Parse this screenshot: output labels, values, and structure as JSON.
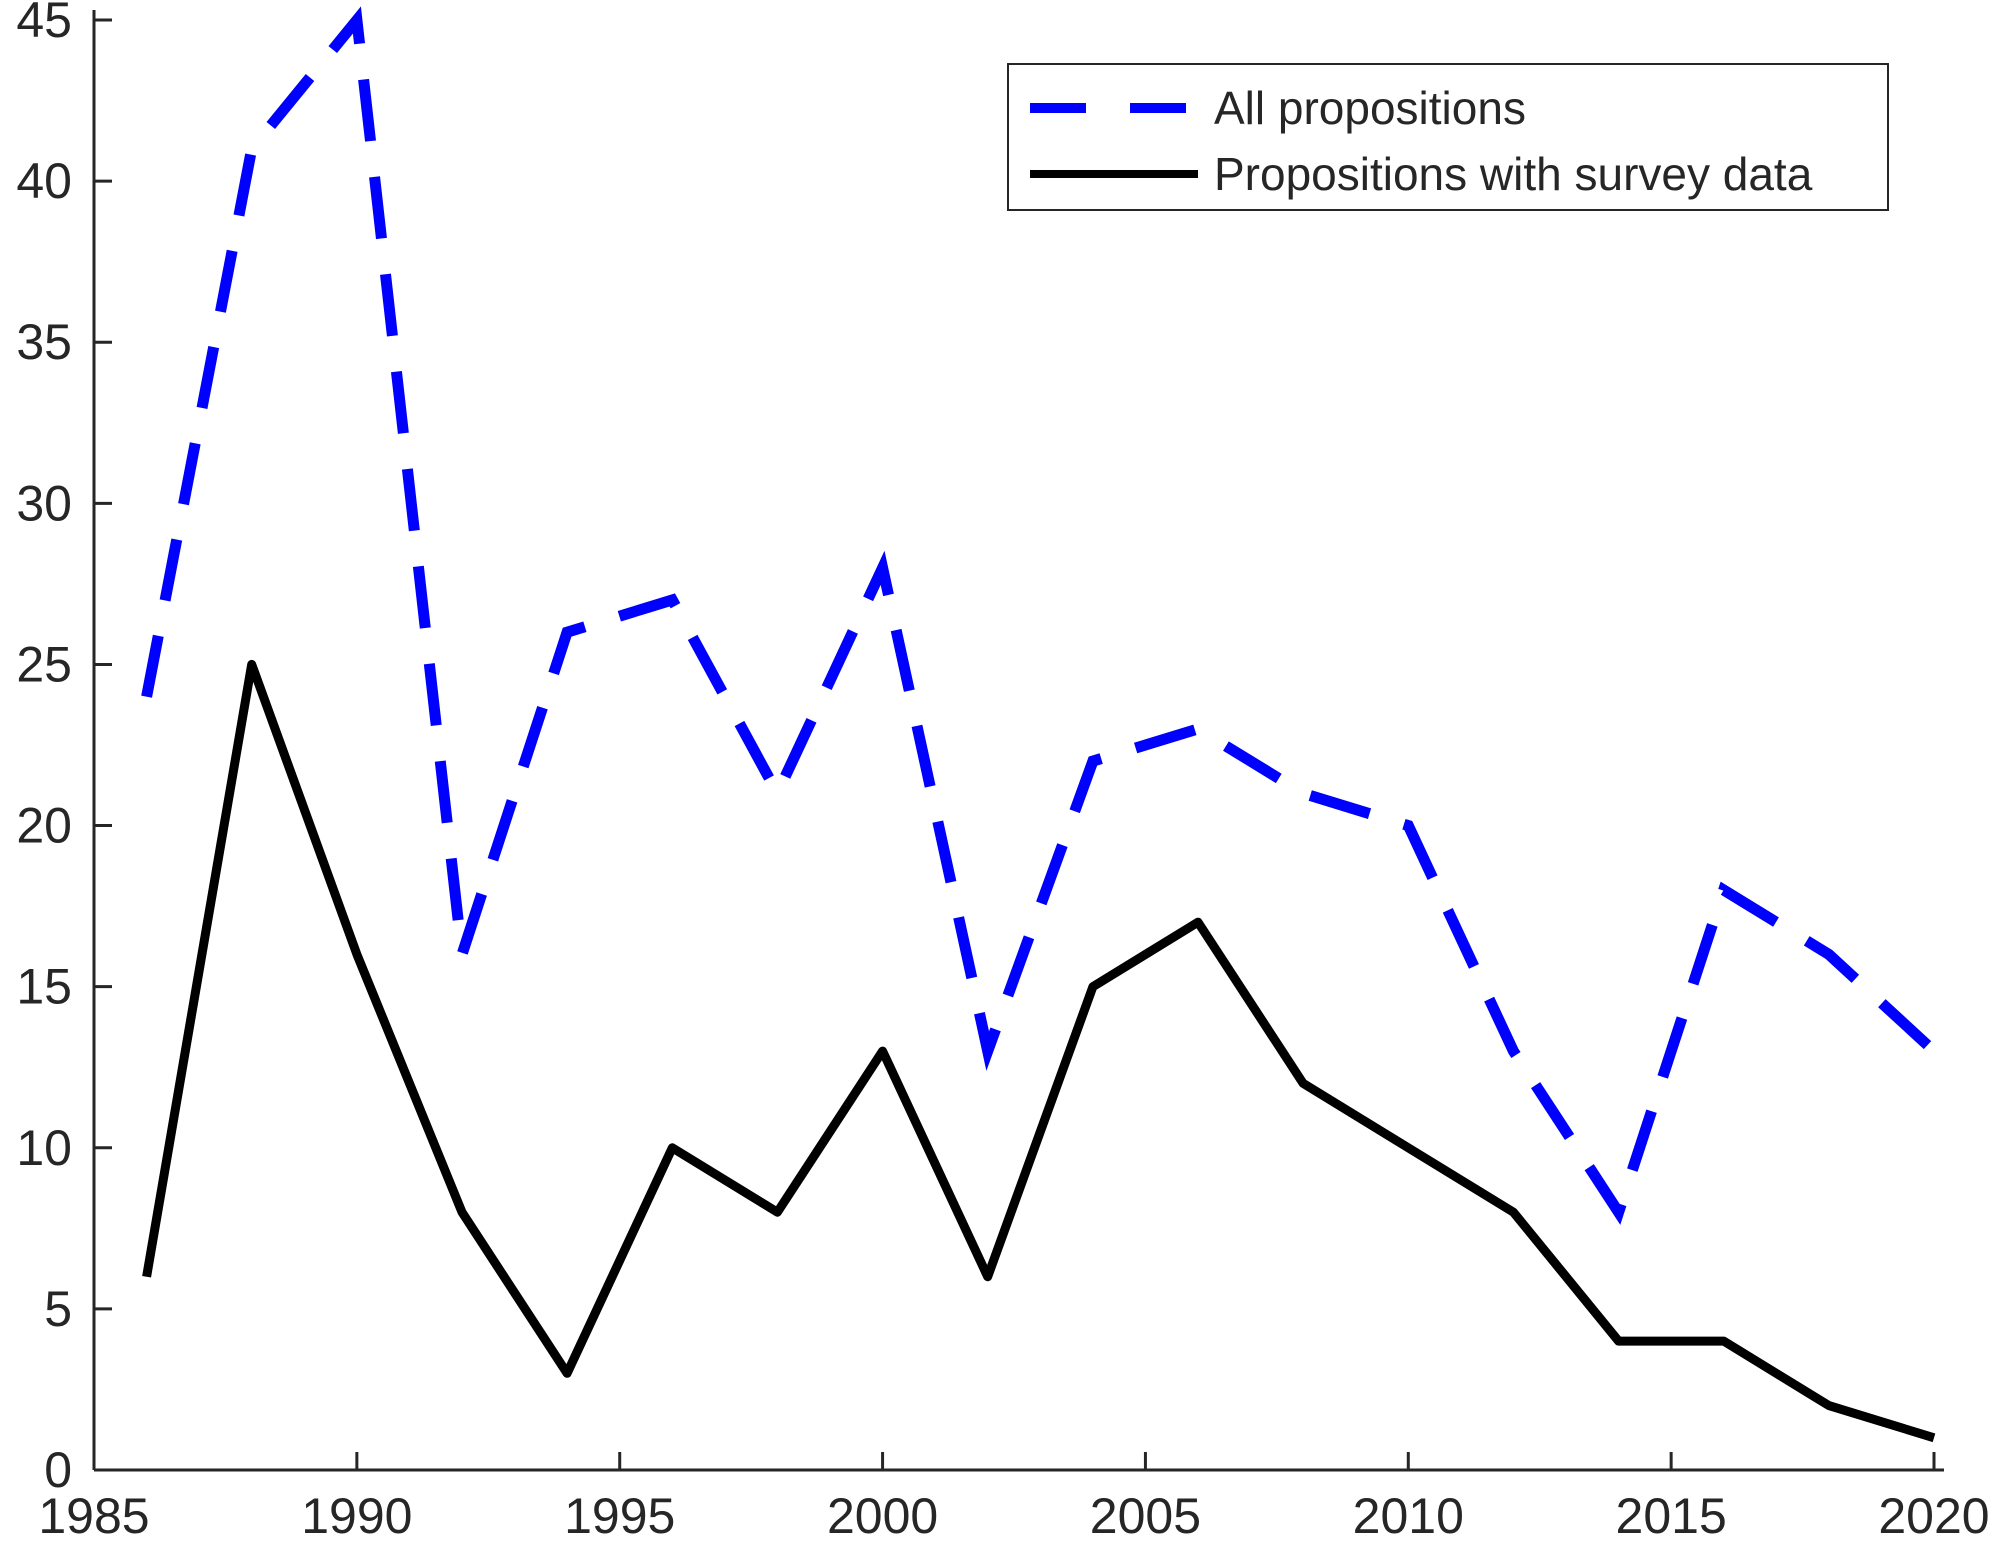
{
  "chart_data": {
    "type": "line",
    "title": "",
    "xlabel": "",
    "ylabel": "",
    "xlim": [
      1985,
      2020
    ],
    "ylim": [
      0,
      45
    ],
    "x_ticks": [
      1985,
      1990,
      1995,
      2000,
      2005,
      2010,
      2015,
      2020
    ],
    "y_ticks": [
      0,
      5,
      10,
      15,
      20,
      25,
      30,
      35,
      40,
      45
    ],
    "grid": false,
    "legend_position": "top-right",
    "x": [
      1986,
      1988,
      1990,
      1992,
      1994,
      1996,
      1998,
      2000,
      2002,
      2004,
      2006,
      2008,
      2010,
      2012,
      2014,
      2016,
      2018,
      2020
    ],
    "series": [
      {
        "name": "All propositions",
        "color": "#0000ff",
        "line_style": "dashed",
        "values": [
          24,
          41,
          45,
          16,
          26,
          27,
          21,
          28,
          13,
          22,
          23,
          21,
          20,
          13,
          8,
          18,
          16,
          13
        ]
      },
      {
        "name": "Propositions with survey data",
        "color": "#000000",
        "line_style": "solid",
        "values": [
          6,
          25,
          16,
          8,
          3,
          10,
          8,
          13,
          6,
          15,
          17,
          12,
          10,
          8,
          4,
          4,
          2,
          1
        ]
      }
    ]
  }
}
